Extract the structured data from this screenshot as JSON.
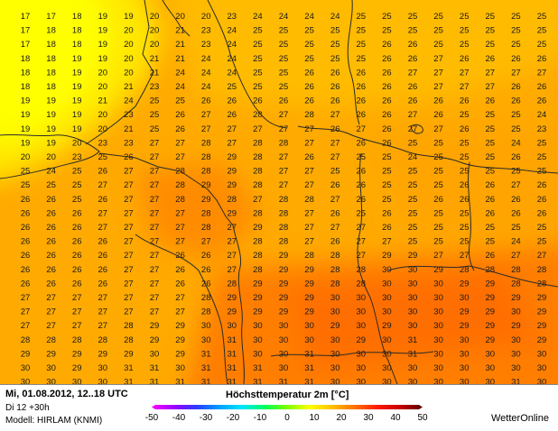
{
  "footer": {
    "date_label": "Mi, 01.08.2012, 12..18 UTC",
    "lead_label": "Di 12 +30h",
    "model_label": "Modell: HIRLAM (KNMI)",
    "title": "Höchsttemperatur 2m [°C]",
    "brand": "WetterOnline"
  },
  "scale": {
    "ticks": [
      -50,
      -40,
      -30,
      -20,
      -10,
      0,
      10,
      20,
      30,
      40,
      50
    ],
    "colors": [
      "#ff00ff",
      "#9a00ff",
      "#2a3cff",
      "#00a0ff",
      "#00e6ff",
      "#00ff5a",
      "#7dff00",
      "#ffff00",
      "#ffc000",
      "#ff7000",
      "#ff1a00",
      "#c80000",
      "#5a0000"
    ]
  },
  "grid": {
    "rows": [
      [
        "17",
        "17",
        "18",
        "19",
        "19",
        "20",
        "20",
        "20",
        "23",
        "24",
        "24",
        "24",
        "24",
        "25",
        "25",
        "25",
        "25",
        "25",
        "25",
        "25",
        "25",
        "25"
      ],
      [
        "17",
        "18",
        "18",
        "19",
        "20",
        "20",
        "21",
        "23",
        "24",
        "25",
        "25",
        "25",
        "25",
        "25",
        "25",
        "25",
        "25",
        "25",
        "25",
        "25",
        "25",
        "25"
      ],
      [
        "17",
        "18",
        "18",
        "19",
        "20",
        "20",
        "21",
        "23",
        "24",
        "25",
        "25",
        "25",
        "25",
        "25",
        "26",
        "26",
        "25",
        "25",
        "25",
        "25",
        "25",
        "25"
      ],
      [
        "18",
        "18",
        "19",
        "19",
        "20",
        "21",
        "21",
        "24",
        "24",
        "25",
        "25",
        "25",
        "25",
        "25",
        "26",
        "26",
        "27",
        "26",
        "26",
        "26",
        "26",
        "25"
      ],
      [
        "18",
        "18",
        "19",
        "20",
        "20",
        "21",
        "24",
        "24",
        "24",
        "25",
        "25",
        "26",
        "26",
        "26",
        "26",
        "27",
        "27",
        "27",
        "27",
        "27",
        "27",
        "26"
      ],
      [
        "18",
        "18",
        "19",
        "20",
        "21",
        "23",
        "24",
        "24",
        "25",
        "25",
        "25",
        "26",
        "26",
        "26",
        "26",
        "26",
        "27",
        "27",
        "27",
        "26",
        "26",
        "26"
      ],
      [
        "19",
        "19",
        "19",
        "21",
        "24",
        "25",
        "25",
        "26",
        "26",
        "26",
        "26",
        "26",
        "26",
        "26",
        "26",
        "26",
        "26",
        "26",
        "26",
        "26",
        "26",
        "25"
      ],
      [
        "19",
        "19",
        "19",
        "20",
        "23",
        "25",
        "26",
        "27",
        "26",
        "28",
        "27",
        "28",
        "27",
        "26",
        "26",
        "27",
        "26",
        "25",
        "25",
        "25",
        "24",
        "25"
      ],
      [
        "19",
        "19",
        "19",
        "20",
        "21",
        "25",
        "26",
        "27",
        "27",
        "27",
        "27",
        "27",
        "26",
        "27",
        "26",
        "27",
        "27",
        "26",
        "25",
        "25",
        "23",
        "24"
      ],
      [
        "19",
        "19",
        "20",
        "23",
        "23",
        "27",
        "27",
        "28",
        "27",
        "28",
        "28",
        "27",
        "27",
        "26",
        "26",
        "25",
        "25",
        "25",
        "25",
        "24",
        "25",
        "25"
      ],
      [
        "20",
        "20",
        "23",
        "25",
        "26",
        "27",
        "27",
        "28",
        "29",
        "28",
        "27",
        "26",
        "27",
        "25",
        "25",
        "24",
        "25",
        "25",
        "25",
        "26",
        "25",
        "26"
      ],
      [
        "25",
        "24",
        "25",
        "26",
        "27",
        "27",
        "28",
        "28",
        "29",
        "28",
        "27",
        "27",
        "25",
        "26",
        "25",
        "25",
        "25",
        "25",
        "25",
        "25",
        "25",
        "27"
      ],
      [
        "25",
        "25",
        "25",
        "27",
        "27",
        "27",
        "28",
        "29",
        "29",
        "28",
        "27",
        "27",
        "26",
        "26",
        "25",
        "25",
        "25",
        "26",
        "26",
        "27",
        "26",
        "26"
      ],
      [
        "26",
        "26",
        "25",
        "26",
        "27",
        "27",
        "28",
        "29",
        "28",
        "27",
        "28",
        "28",
        "27",
        "26",
        "25",
        "25",
        "26",
        "26",
        "26",
        "26",
        "26",
        "26"
      ],
      [
        "26",
        "26",
        "26",
        "27",
        "27",
        "27",
        "27",
        "28",
        "29",
        "28",
        "28",
        "27",
        "26",
        "25",
        "26",
        "25",
        "25",
        "25",
        "26",
        "26",
        "26",
        "25"
      ],
      [
        "26",
        "26",
        "26",
        "27",
        "27",
        "27",
        "27",
        "28",
        "27",
        "29",
        "28",
        "27",
        "27",
        "27",
        "26",
        "25",
        "25",
        "25",
        "25",
        "25",
        "25",
        "24"
      ],
      [
        "26",
        "26",
        "26",
        "26",
        "27",
        "27",
        "27",
        "27",
        "27",
        "28",
        "28",
        "27",
        "26",
        "27",
        "27",
        "25",
        "25",
        "25",
        "25",
        "24",
        "25",
        "25"
      ],
      [
        "26",
        "26",
        "26",
        "26",
        "27",
        "27",
        "26",
        "26",
        "27",
        "28",
        "29",
        "28",
        "28",
        "27",
        "29",
        "29",
        "27",
        "27",
        "26",
        "27",
        "27",
        "27"
      ],
      [
        "26",
        "26",
        "26",
        "26",
        "27",
        "27",
        "26",
        "26",
        "27",
        "28",
        "29",
        "29",
        "28",
        "28",
        "30",
        "30",
        "29",
        "28",
        "28",
        "28",
        "28",
        "28"
      ],
      [
        "26",
        "26",
        "26",
        "26",
        "27",
        "27",
        "26",
        "26",
        "28",
        "29",
        "29",
        "29",
        "28",
        "28",
        "30",
        "30",
        "30",
        "29",
        "29",
        "28",
        "28",
        "29"
      ],
      [
        "27",
        "27",
        "27",
        "27",
        "27",
        "27",
        "27",
        "28",
        "29",
        "29",
        "29",
        "29",
        "30",
        "30",
        "30",
        "30",
        "30",
        "30",
        "29",
        "29",
        "29",
        "29"
      ],
      [
        "27",
        "27",
        "27",
        "27",
        "27",
        "27",
        "27",
        "28",
        "29",
        "29",
        "29",
        "29",
        "30",
        "30",
        "30",
        "30",
        "30",
        "29",
        "29",
        "30",
        "29",
        "29"
      ],
      [
        "27",
        "27",
        "27",
        "27",
        "28",
        "29",
        "29",
        "30",
        "30",
        "30",
        "30",
        "30",
        "29",
        "30",
        "29",
        "30",
        "30",
        "29",
        "29",
        "29",
        "29",
        "29"
      ],
      [
        "28",
        "28",
        "28",
        "28",
        "28",
        "29",
        "29",
        "30",
        "31",
        "30",
        "30",
        "30",
        "30",
        "29",
        "30",
        "31",
        "30",
        "30",
        "29",
        "30",
        "29",
        "29"
      ],
      [
        "29",
        "29",
        "29",
        "29",
        "29",
        "30",
        "29",
        "31",
        "31",
        "30",
        "30",
        "31",
        "30",
        "30",
        "30",
        "31",
        "30",
        "30",
        "30",
        "30",
        "30",
        "30"
      ],
      [
        "30",
        "30",
        "29",
        "30",
        "31",
        "31",
        "30",
        "31",
        "31",
        "31",
        "30",
        "31",
        "30",
        "30",
        "30",
        "30",
        "30",
        "30",
        "30",
        "30",
        "30",
        "31"
      ],
      [
        "30",
        "30",
        "30",
        "30",
        "31",
        "31",
        "31",
        "31",
        "31",
        "31",
        "31",
        "31",
        "30",
        "30",
        "30",
        "30",
        "30",
        "30",
        "30",
        "31",
        "30",
        "30"
      ]
    ]
  }
}
